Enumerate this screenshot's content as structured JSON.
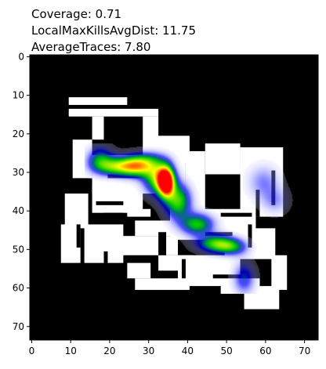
{
  "chart_data": {
    "type": "heatmap",
    "title_lines": [
      "Coverage: 0.71",
      "LocalMaxKillsAvgDist: 11.75",
      "AverageTraces: 7.80"
    ],
    "xlabel": "",
    "ylabel": "",
    "xlim": [
      0,
      74
    ],
    "ylim": [
      74,
      0
    ],
    "x_ticks": [
      0,
      10,
      20,
      30,
      40,
      50,
      60,
      70
    ],
    "y_ticks": [
      0,
      10,
      20,
      30,
      40,
      50,
      60,
      70
    ],
    "grid": false,
    "legend": "none",
    "background_color": "#000000",
    "walkable_color": "#ffffff",
    "colormap": [
      "#ffffff",
      "#0000ff",
      "#00cc00",
      "#ffff00",
      "#ff0000"
    ],
    "walkable_regions": [
      {
        "x": 10,
        "y": 11,
        "w": 15,
        "h": 2
      },
      {
        "x": 10,
        "y": 14,
        "w": 23,
        "h": 2
      },
      {
        "x": 16,
        "y": 16,
        "w": 3,
        "h": 6
      },
      {
        "x": 29,
        "y": 16,
        "w": 4,
        "h": 13
      },
      {
        "x": 32,
        "y": 21,
        "w": 9,
        "h": 7
      },
      {
        "x": 11,
        "y": 22,
        "w": 5,
        "h": 10
      },
      {
        "x": 16,
        "y": 26,
        "w": 24,
        "h": 10
      },
      {
        "x": 20,
        "y": 31,
        "w": 12,
        "h": 3
      },
      {
        "x": 40,
        "y": 25,
        "w": 5,
        "h": 17
      },
      {
        "x": 45,
        "y": 23,
        "w": 9,
        "h": 8
      },
      {
        "x": 54,
        "y": 24,
        "w": 11,
        "h": 18
      },
      {
        "x": 9,
        "y": 36,
        "w": 6,
        "h": 9
      },
      {
        "x": 16,
        "y": 34,
        "w": 13,
        "h": 7
      },
      {
        "x": 8,
        "y": 44,
        "w": 5,
        "h": 10
      },
      {
        "x": 14,
        "y": 44,
        "w": 10,
        "h": 10
      },
      {
        "x": 25,
        "y": 40,
        "w": 6,
        "h": 2
      },
      {
        "x": 27,
        "y": 43,
        "w": 10,
        "h": 4
      },
      {
        "x": 22,
        "y": 47,
        "w": 16,
        "h": 5
      },
      {
        "x": 36,
        "y": 40,
        "w": 22,
        "h": 8
      },
      {
        "x": 50,
        "y": 45,
        "w": 13,
        "h": 8
      },
      {
        "x": 33,
        "y": 52,
        "w": 9,
        "h": 4
      },
      {
        "x": 38,
        "y": 52,
        "w": 16,
        "h": 8
      },
      {
        "x": 25,
        "y": 54,
        "w": 6,
        "h": 4
      },
      {
        "x": 27,
        "y": 58,
        "w": 14,
        "h": 3
      },
      {
        "x": 49,
        "y": 58,
        "w": 10,
        "h": 4
      },
      {
        "x": 55,
        "y": 60,
        "w": 9,
        "h": 6
      },
      {
        "x": 62,
        "y": 52,
        "w": 4,
        "h": 9
      }
    ],
    "wall_regions": [
      {
        "x": 20,
        "y": 31,
        "w": 12,
        "h": 1
      },
      {
        "x": 17,
        "y": 38,
        "w": 7,
        "h": 1
      },
      {
        "x": 19,
        "y": 41,
        "w": 5,
        "h": 1
      },
      {
        "x": 33,
        "y": 46,
        "w": 2,
        "h": 6
      },
      {
        "x": 45,
        "y": 46,
        "w": 7,
        "h": 1
      },
      {
        "x": 49,
        "y": 41,
        "w": 8,
        "h": 1
      },
      {
        "x": 58,
        "y": 35,
        "w": 1,
        "h": 7
      },
      {
        "x": 62,
        "y": 30,
        "w": 1,
        "h": 9
      },
      {
        "x": 56,
        "y": 44,
        "w": 1,
        "h": 6
      },
      {
        "x": 47,
        "y": 57,
        "w": 10,
        "h": 1
      },
      {
        "x": 39,
        "y": 53,
        "w": 1,
        "h": 5
      },
      {
        "x": 19,
        "y": 51,
        "w": 1,
        "h": 3
      },
      {
        "x": 12,
        "y": 44,
        "w": 1,
        "h": 6
      }
    ],
    "density_peaks": [
      {
        "x": 35,
        "y": 33,
        "sx": 1.4,
        "sy": 2.6,
        "value": 1.0
      },
      {
        "x": 33,
        "y": 32,
        "sx": 2.6,
        "sy": 3.0,
        "value": 0.62
      },
      {
        "x": 38,
        "y": 38,
        "sx": 2.4,
        "sy": 3.2,
        "value": 0.55
      },
      {
        "x": 23,
        "y": 29,
        "sx": 4.0,
        "sy": 1.7,
        "value": 0.6
      },
      {
        "x": 28,
        "y": 29,
        "sx": 3.0,
        "sy": 1.9,
        "value": 0.48
      },
      {
        "x": 18,
        "y": 27,
        "sx": 2.4,
        "sy": 2.3,
        "value": 0.36
      },
      {
        "x": 43,
        "y": 44,
        "sx": 3.0,
        "sy": 2.0,
        "value": 0.5
      },
      {
        "x": 48,
        "y": 49,
        "sx": 3.5,
        "sy": 1.6,
        "value": 0.54
      },
      {
        "x": 52,
        "y": 50,
        "sx": 2.8,
        "sy": 1.5,
        "value": 0.32
      },
      {
        "x": 55,
        "y": 58,
        "sx": 2.0,
        "sy": 3.0,
        "value": 0.3
      },
      {
        "x": 60,
        "y": 33,
        "sx": 3.0,
        "sy": 3.2,
        "value": 0.2
      },
      {
        "x": 63,
        "y": 38,
        "sx": 2.5,
        "sy": 2.4,
        "value": 0.16
      },
      {
        "x": 30,
        "y": 27,
        "sx": 3.5,
        "sy": 1.5,
        "value": 0.2
      }
    ],
    "density_support": {
      "x0": 14,
      "x1": 68,
      "y0": 23,
      "y1": 62
    }
  }
}
